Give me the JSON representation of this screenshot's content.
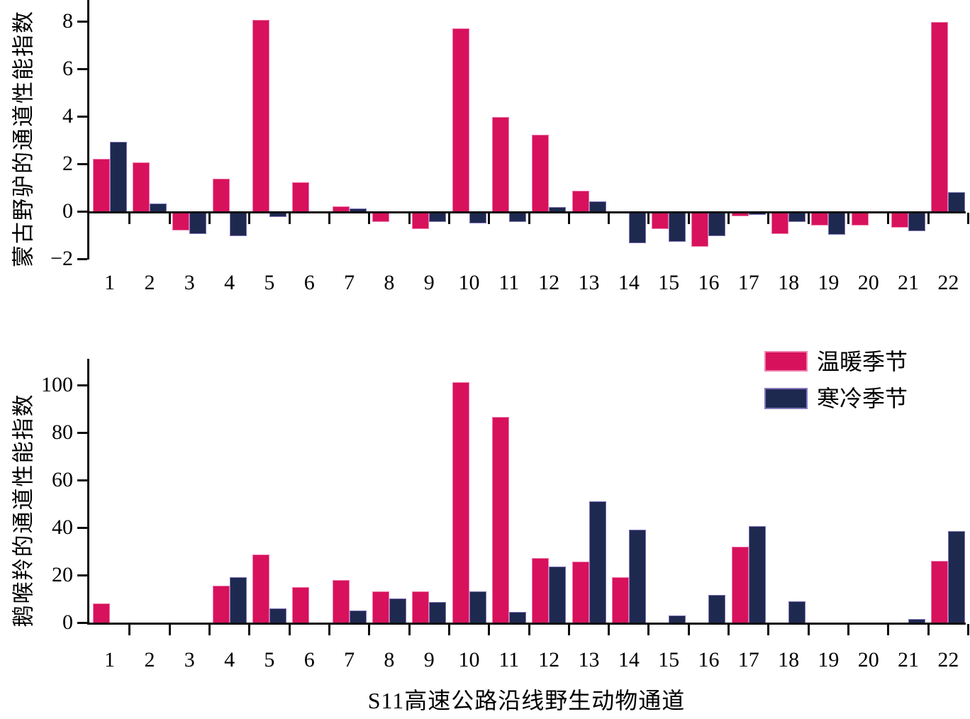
{
  "figure": {
    "x_axis_title": "S11高速公路沿线野生动物通道",
    "categories": [
      "1",
      "2",
      "3",
      "4",
      "5",
      "6",
      "7",
      "8",
      "9",
      "10",
      "11",
      "12",
      "13",
      "14",
      "15",
      "16",
      "17",
      "18",
      "19",
      "20",
      "21",
      "22"
    ],
    "legend": {
      "position": "upper-right-of-lower-panel",
      "items": [
        {
          "label": "温暖季节",
          "color": "#d8115c",
          "edge": "#ee82b0"
        },
        {
          "label": "寒冷季节",
          "color": "#1e2950",
          "edge": "#8577bd"
        }
      ]
    },
    "colors": {
      "warm": "#d8115c",
      "cold": "#1e2950",
      "axis": "#0a0a0a"
    }
  },
  "chart_data": [
    {
      "type": "bar",
      "panel": "top",
      "ylabel": "蒙古野驴的通道性能指数",
      "xlabel": "",
      "categories": [
        "1",
        "2",
        "3",
        "4",
        "5",
        "6",
        "7",
        "8",
        "9",
        "10",
        "11",
        "12",
        "13",
        "14",
        "15",
        "16",
        "17",
        "18",
        "19",
        "20",
        "21",
        "22"
      ],
      "series": [
        {
          "name": "温暖季节",
          "values": [
            2.2,
            2.05,
            -0.75,
            1.35,
            8.05,
            1.2,
            0.2,
            -0.4,
            -0.7,
            7.7,
            3.95,
            3.2,
            0.85,
            0,
            -0.7,
            -1.45,
            -0.15,
            -0.9,
            -0.55,
            -0.55,
            -0.65,
            7.95
          ]
        },
        {
          "name": "寒冷季节",
          "values": [
            2.9,
            0.3,
            -0.9,
            -1.0,
            -0.2,
            0,
            0.1,
            0,
            -0.4,
            -0.45,
            -0.4,
            0.15,
            0.4,
            -1.3,
            -1.25,
            -1.0,
            -0.1,
            -0.4,
            -0.95,
            0,
            -0.8,
            0.8
          ]
        }
      ],
      "yticks": [
        -2,
        0,
        2,
        4,
        6,
        8
      ],
      "ylim": [
        -2,
        8.9
      ],
      "grid": false
    },
    {
      "type": "bar",
      "panel": "bottom",
      "ylabel": "鹅喉羚的通道性能指数",
      "xlabel": "S11高速公路沿线野生动物通道",
      "categories": [
        "1",
        "2",
        "3",
        "4",
        "5",
        "6",
        "7",
        "8",
        "9",
        "10",
        "11",
        "12",
        "13",
        "14",
        "15",
        "16",
        "17",
        "18",
        "19",
        "20",
        "21",
        "22"
      ],
      "series": [
        {
          "name": "温暖季节",
          "values": [
            8,
            0,
            0,
            15.5,
            28.5,
            15,
            18,
            13,
            13,
            101,
            86.5,
            27,
            25.5,
            19,
            0,
            0,
            32,
            0,
            0,
            0,
            0,
            26
          ]
        },
        {
          "name": "寒冷季节",
          "values": [
            0,
            0,
            0,
            19,
            6,
            0,
            5,
            10,
            8.5,
            13,
            4.5,
            23.5,
            51,
            39,
            3,
            11.5,
            40.5,
            9,
            0,
            0,
            1.5,
            38.5
          ]
        }
      ],
      "yticks": [
        0,
        20,
        40,
        60,
        80,
        100
      ],
      "ylim": [
        0,
        111
      ],
      "grid": false
    }
  ]
}
